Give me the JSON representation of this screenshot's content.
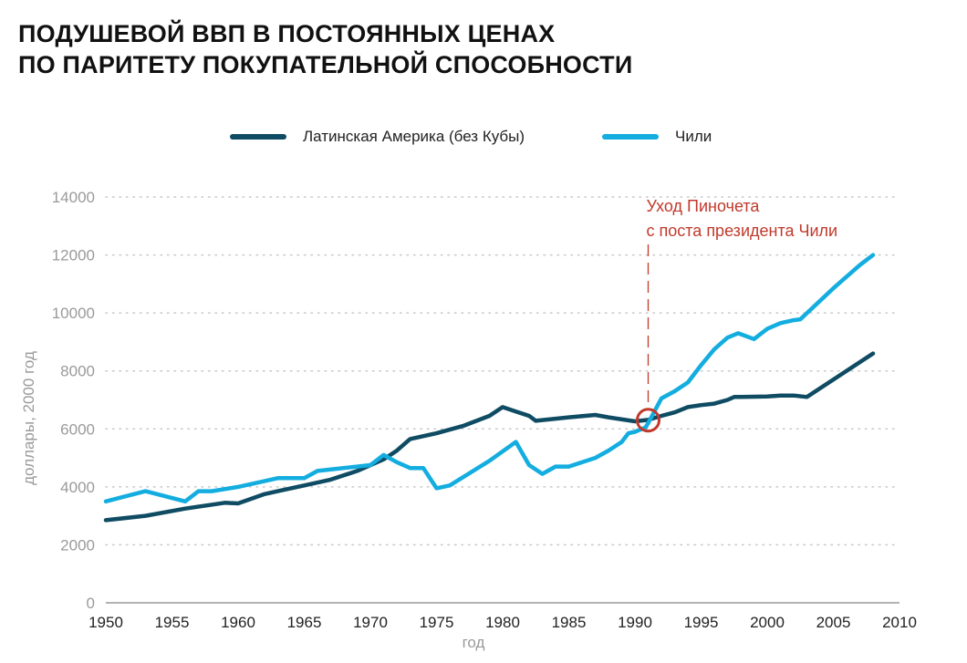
{
  "title_lines": [
    "ПОДУШЕВОЙ ВВП В ПОСТОЯННЫХ ЦЕНАХ",
    "ПО ПАРИТЕТУ ПОКУПАТЕЛЬНОЙ СПОСОБНОСТИ"
  ],
  "colors": {
    "latam": "#0f4c63",
    "chile": "#13ade0",
    "annotation": "#c0392b",
    "axis_text": "#9a9a9a",
    "grid": "#c8c8c8"
  },
  "chart_data": {
    "type": "line",
    "title": "ПОДУШЕВОЙ ВВП В ПОСТОЯННЫХ ЦЕНАХ ПО ПАРИТЕТУ ПОКУПАТЕЛЬНОЙ СПОСОБНОСТИ",
    "xlabel": "год",
    "ylabel": "доллары, 2000 год",
    "xlim": [
      1950,
      2010
    ],
    "ylim": [
      0,
      14000
    ],
    "x_ticks": [
      1950,
      1955,
      1960,
      1965,
      1970,
      1975,
      1980,
      1985,
      1990,
      1995,
      2000,
      2005,
      2010
    ],
    "y_ticks": [
      0,
      2000,
      4000,
      6000,
      8000,
      10000,
      12000,
      14000
    ],
    "grid": "horizontal dotted",
    "legend_position": "top-center",
    "series": [
      {
        "name": "Латинская Америка (без Кубы)",
        "color": "#0f4c63",
        "points": [
          [
            1950,
            2850
          ],
          [
            1953,
            3000
          ],
          [
            1956,
            3250
          ],
          [
            1959,
            3450
          ],
          [
            1960,
            3430
          ],
          [
            1962,
            3750
          ],
          [
            1963,
            3850
          ],
          [
            1965,
            4050
          ],
          [
            1967,
            4250
          ],
          [
            1969,
            4550
          ],
          [
            1971,
            4950
          ],
          [
            1972,
            5250
          ],
          [
            1973,
            5650
          ],
          [
            1975,
            5850
          ],
          [
            1977,
            6100
          ],
          [
            1979,
            6450
          ],
          [
            1980,
            6750
          ],
          [
            1981,
            6600
          ],
          [
            1982,
            6450
          ],
          [
            1982.5,
            6280
          ],
          [
            1985,
            6400
          ],
          [
            1987,
            6480
          ],
          [
            1988,
            6400
          ],
          [
            1990,
            6260
          ],
          [
            1991,
            6310
          ],
          [
            1992,
            6450
          ],
          [
            1993,
            6570
          ],
          [
            1994,
            6750
          ],
          [
            1995,
            6820
          ],
          [
            1996,
            6870
          ],
          [
            1997,
            7000
          ],
          [
            1997.5,
            7100
          ],
          [
            1998,
            7100
          ],
          [
            2000,
            7120
          ],
          [
            2001,
            7150
          ],
          [
            2002,
            7150
          ],
          [
            2003,
            7100
          ],
          [
            2008,
            8600
          ]
        ]
      },
      {
        "name": "Чили",
        "color": "#13ade0",
        "points": [
          [
            1950,
            3500
          ],
          [
            1953,
            3850
          ],
          [
            1956,
            3500
          ],
          [
            1957,
            3850
          ],
          [
            1958,
            3850
          ],
          [
            1960,
            4000
          ],
          [
            1963,
            4300
          ],
          [
            1965,
            4300
          ],
          [
            1966,
            4550
          ],
          [
            1970,
            4750
          ],
          [
            1971,
            5100
          ],
          [
            1972,
            4850
          ],
          [
            1973,
            4650
          ],
          [
            1974,
            4650
          ],
          [
            1975,
            3950
          ],
          [
            1976,
            4050
          ],
          [
            1979,
            4900
          ],
          [
            1981,
            5550
          ],
          [
            1982,
            4750
          ],
          [
            1983,
            4450
          ],
          [
            1984,
            4700
          ],
          [
            1985,
            4700
          ],
          [
            1987,
            5000
          ],
          [
            1988,
            5250
          ],
          [
            1989,
            5550
          ],
          [
            1989.5,
            5850
          ],
          [
            1990,
            5900
          ],
          [
            1990.8,
            6050
          ],
          [
            1991,
            6200
          ],
          [
            1992,
            7050
          ],
          [
            1993,
            7300
          ],
          [
            1994,
            7600
          ],
          [
            1995,
            8200
          ],
          [
            1996,
            8750
          ],
          [
            1997,
            9150
          ],
          [
            1997.8,
            9300
          ],
          [
            1999,
            9100
          ],
          [
            2000,
            9450
          ],
          [
            2001,
            9650
          ],
          [
            2002,
            9750
          ],
          [
            2002.5,
            9780
          ],
          [
            2005,
            10850
          ],
          [
            2007,
            11650
          ],
          [
            2008,
            12000
          ]
        ]
      }
    ],
    "annotations": [
      {
        "text_lines": [
          "Уход Пиночета",
          "с поста президента Чили"
        ],
        "x": 1991,
        "y": 6300,
        "style": "dashed vertical line with circle marker"
      }
    ]
  }
}
